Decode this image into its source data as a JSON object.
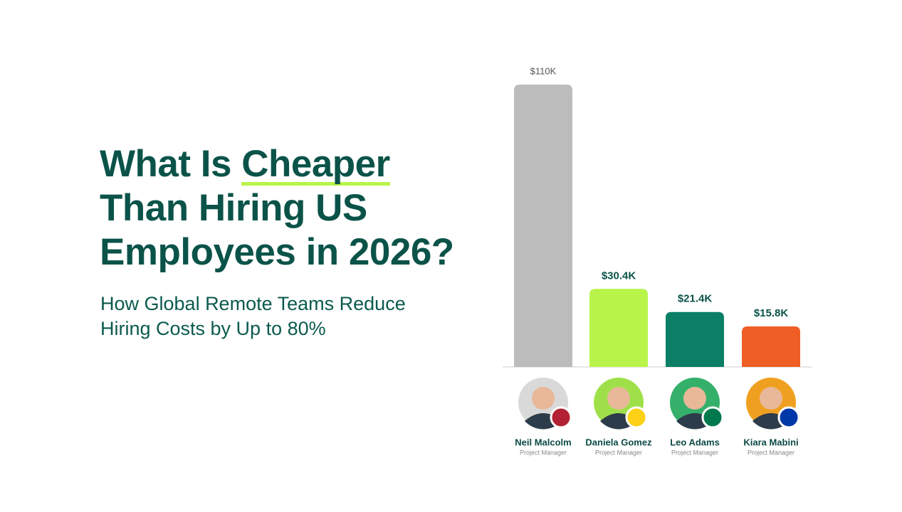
{
  "title": {
    "line1": "What Is ",
    "highlight": "Cheaper",
    "line2": "Than Hiring US",
    "line3": "Employees in 2026?"
  },
  "subtitle": {
    "line1": "How Global Remote Teams Reduce",
    "line2": "Hiring Costs by Up to 80%"
  },
  "chart_data": {
    "type": "bar",
    "categories": [
      "Neil Malcolm",
      "Daniela Gomez",
      "Leo Adams",
      "Kiara Mabini"
    ],
    "roles": [
      "Project Manager",
      "Project Manager",
      "Project Manager",
      "Project Manager"
    ],
    "values": [
      110,
      30.4,
      21.4,
      15.8
    ],
    "value_labels": [
      "$110K",
      "$30.4K",
      "$21.4K",
      "$15.8K"
    ],
    "colors": [
      "#bcbcbc",
      "#b8f44a",
      "#0a7f66",
      "#ef5f25"
    ]
  }
}
